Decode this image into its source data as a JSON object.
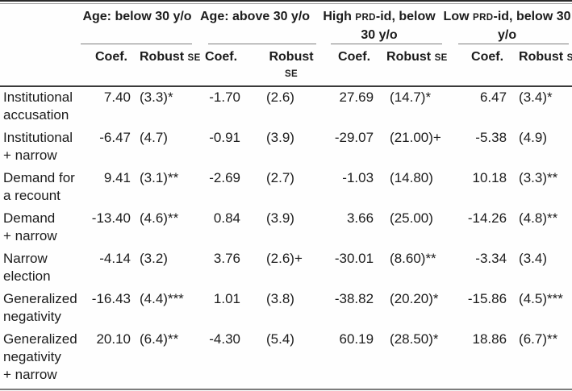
{
  "table": {
    "col_groups": [
      {
        "name": "age-below-30",
        "segments": [
          {
            "text": "Age: below 30 y/o"
          }
        ]
      },
      {
        "name": "age-above-30",
        "segments": [
          {
            "text": "Age: above 30 y/o"
          }
        ]
      },
      {
        "name": "high-prd-id-below-30",
        "segments": [
          {
            "text": "High "
          },
          {
            "text": "PRD",
            "smallcaps": true
          },
          {
            "text": "-id, below 30 y/o"
          }
        ]
      },
      {
        "name": "low-prd-id-below-30",
        "segments": [
          {
            "text": "Low "
          },
          {
            "text": "PRD",
            "smallcaps": true
          },
          {
            "text": "-id, below 30 y/o"
          }
        ]
      }
    ],
    "subheaders": {
      "coef": {
        "segments": [
          {
            "text": "Coef."
          }
        ]
      },
      "robust_se": {
        "segments": [
          {
            "text": "Robust "
          },
          {
            "text": "SE",
            "smallcaps": true
          }
        ]
      }
    },
    "cell_keys": [
      "g1_coef",
      "g1_se",
      "g2_coef",
      "g2_se",
      "g3_coef",
      "g3_se",
      "g4_coef",
      "g4_se"
    ],
    "rows": [
      {
        "label_lines": [
          "Institutional",
          "accusation"
        ],
        "g1_coef": "7.40",
        "g1_se": "(3.3)*",
        "g2_coef": "-1.70",
        "g2_se": "(2.6)",
        "g3_coef": "27.69",
        "g3_se": "(14.7)*",
        "g4_coef": "6.47",
        "g4_se": "(3.4)*"
      },
      {
        "label_lines": [
          "Institutional",
          "+ narrow"
        ],
        "g1_coef": "-6.47",
        "g1_se": "(4.7)",
        "g2_coef": "-0.91",
        "g2_se": "(3.9)",
        "g3_coef": "-29.07",
        "g3_se": "(21.00)+",
        "g4_coef": "-5.38",
        "g4_se": "(4.9)"
      },
      {
        "label_lines": [
          "Demand for",
          "a recount"
        ],
        "g1_coef": "9.41",
        "g1_se": "(3.1)**",
        "g2_coef": "-2.69",
        "g2_se": "(2.7)",
        "g3_coef": "-1.03",
        "g3_se": "(14.80)",
        "g4_coef": "10.18",
        "g4_se": "(3.3)**"
      },
      {
        "label_lines": [
          "Demand",
          "+ narrow"
        ],
        "g1_coef": "-13.40",
        "g1_se": "(4.6)**",
        "g2_coef": "0.84",
        "g2_se": "(3.9)",
        "g3_coef": "3.66",
        "g3_se": "(25.00)",
        "g4_coef": "-14.26",
        "g4_se": "(4.8)**"
      },
      {
        "label_lines": [
          "Narrow",
          "election"
        ],
        "g1_coef": "-4.14",
        "g1_se": "(3.2)",
        "g2_coef": "3.76",
        "g2_se": "(2.6)+",
        "g3_coef": "-30.01",
        "g3_se": "(8.60)**",
        "g4_coef": "-3.34",
        "g4_se": "(3.4)"
      },
      {
        "label_lines": [
          "Generalized",
          "negativity"
        ],
        "g1_coef": "-16.43",
        "g1_se": "(4.4)***",
        "g2_coef": "1.01",
        "g2_se": "(3.8)",
        "g3_coef": "-38.82",
        "g3_se": "(20.20)*",
        "g4_coef": "-15.86",
        "g4_se": "(4.5)***"
      },
      {
        "label_lines": [
          "Generalized",
          "negativity",
          "+ narrow"
        ],
        "g1_coef": "20.10",
        "g1_se": "(6.4)**",
        "g2_coef": "-4.30",
        "g2_se": "(5.4)",
        "g3_coef": "60.19",
        "g3_se": "(28.50)*",
        "g4_coef": "18.86",
        "g4_se": "(6.7)**"
      }
    ]
  }
}
